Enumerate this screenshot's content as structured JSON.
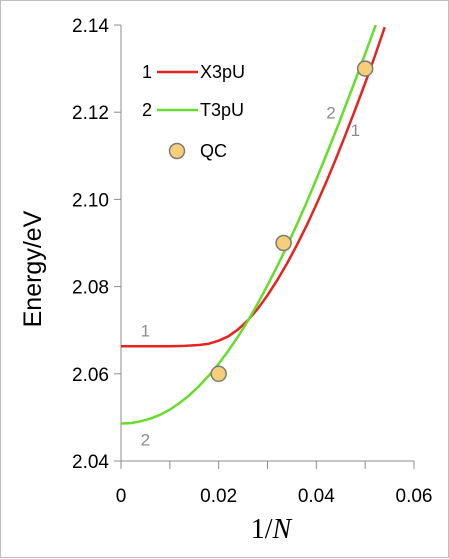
{
  "chart_data": {
    "type": "line",
    "xlabel": "1/N",
    "ylabel": "Energy/eV",
    "xlim": [
      0,
      0.06
    ],
    "ylim": [
      2.04,
      2.14
    ],
    "x_ticks": [
      "0",
      "0.02",
      "0.04",
      "0.06"
    ],
    "y_ticks": [
      "2.04",
      "2.06",
      "2.08",
      "2.10",
      "2.12",
      "2.14"
    ],
    "grid": false,
    "legend_position": "top-left",
    "series": [
      {
        "name": "X3pU",
        "legend_number": "1",
        "color": "#e8231f",
        "type": "line",
        "x": [
          0,
          0.005,
          0.01,
          0.013,
          0.016,
          0.018,
          0.02,
          0.022,
          0.024,
          0.026,
          0.028,
          0.03,
          0.032,
          0.034,
          0.036,
          0.038,
          0.04,
          0.042,
          0.044,
          0.046,
          0.048,
          0.05,
          0.052,
          0.054
        ],
        "values": [
          2.0663,
          2.0663,
          2.0663,
          2.0664,
          2.0666,
          2.0669,
          2.0676,
          2.0686,
          2.0702,
          2.0723,
          2.0749,
          2.078,
          2.0815,
          2.0853,
          2.0895,
          2.094,
          2.0988,
          2.1039,
          2.1093,
          2.1149,
          2.1207,
          2.1267,
          2.1329,
          2.1395
        ]
      },
      {
        "name": "T3pU",
        "legend_number": "2",
        "color": "#66dd2a",
        "type": "line",
        "x": [
          0,
          0.002,
          0.004,
          0.006,
          0.008,
          0.01,
          0.012,
          0.014,
          0.016,
          0.018,
          0.02,
          0.022,
          0.024,
          0.026,
          0.028,
          0.03,
          0.032,
          0.034,
          0.036,
          0.038,
          0.04,
          0.042,
          0.044,
          0.046,
          0.048,
          0.05,
          0.052,
          0.054
        ],
        "values": [
          2.0486,
          2.0487,
          2.0491,
          2.0497,
          2.0506,
          2.0518,
          2.0533,
          2.0551,
          2.0572,
          2.0596,
          2.0623,
          2.0653,
          2.0686,
          2.0722,
          2.0761,
          2.0803,
          2.0847,
          2.0893,
          2.0942,
          2.0993,
          2.1046,
          2.1101,
          2.1157,
          2.1215,
          2.1274,
          2.1334,
          2.1395,
          2.1457
        ]
      },
      {
        "name": "QC",
        "color": "#f7cf78",
        "stroke": "#7a7a7a",
        "type": "scatter",
        "x": [
          0.02,
          0.0333,
          0.05
        ],
        "values": [
          2.06,
          2.09,
          2.13
        ]
      }
    ],
    "curve_labels": [
      {
        "text": "1",
        "x": 0.005,
        "y": 2.0685
      },
      {
        "text": "2",
        "x": 0.005,
        "y": 2.0435
      },
      {
        "text": "2",
        "x": 0.043,
        "y": 2.1185
      },
      {
        "text": "1",
        "x": 0.048,
        "y": 2.1145
      }
    ]
  }
}
